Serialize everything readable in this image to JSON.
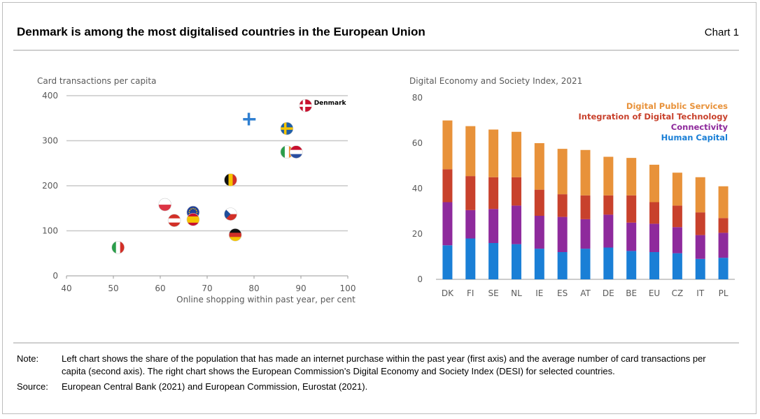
{
  "header": {
    "title": "Denmark is among the most digitalised countries in the European Union",
    "chart_number": "Chart 1"
  },
  "notes": {
    "note_label": "Note:",
    "note_text": "Left chart shows the share of the population that has made an internet purchase within the past year (first axis) and the average number of card transactions per capita (second axis). The right chart shows the European Commission’s Digital Economy and Society Index (DESI) for selected countries.",
    "source_label": "Source:",
    "source_text": "European Central Bank (2021) and European Commission, Eurostat (2021)."
  },
  "chart_data": [
    {
      "type": "scatter",
      "title": "Card transactions per capita",
      "xlabel": "Online shopping within past year, per cent",
      "ylabel": "Card transactions per capita",
      "xlim": [
        40,
        100
      ],
      "ylim": [
        0,
        400
      ],
      "xticks": [
        "40",
        "50",
        "60",
        "70",
        "80",
        "90",
        "100"
      ],
      "yticks": [
        "0",
        "100",
        "200",
        "300",
        "400"
      ],
      "points": [
        {
          "country": "Denmark",
          "x": 91,
          "y": 378,
          "label": "Denmark",
          "flag": "dk"
        },
        {
          "country": "Finland",
          "x": 79,
          "y": 348,
          "flag": "fi"
        },
        {
          "country": "Sweden",
          "x": 87,
          "y": 327,
          "flag": "se"
        },
        {
          "country": "Ireland",
          "x": 87,
          "y": 275,
          "flag": "ie"
        },
        {
          "country": "Netherlands",
          "x": 89,
          "y": 275,
          "flag": "nl"
        },
        {
          "country": "Belgium",
          "x": 75,
          "y": 213,
          "flag": "be"
        },
        {
          "country": "Poland",
          "x": 61,
          "y": 158,
          "flag": "pl"
        },
        {
          "country": "Euro area",
          "x": 67,
          "y": 141,
          "flag": "eu"
        },
        {
          "country": "Czech Republic",
          "x": 75,
          "y": 137,
          "flag": "cz"
        },
        {
          "country": "Austria",
          "x": 63,
          "y": 123,
          "flag": "at"
        },
        {
          "country": "Spain",
          "x": 67,
          "y": 125,
          "flag": "es"
        },
        {
          "country": "Germany",
          "x": 76,
          "y": 91,
          "flag": "de"
        },
        {
          "country": "Italy",
          "x": 51,
          "y": 63,
          "flag": "it"
        }
      ]
    },
    {
      "type": "bar",
      "stacked": true,
      "title": "Digital Economy and Society Index, 2021",
      "categories": [
        "DK",
        "FI",
        "SE",
        "NL",
        "IE",
        "ES",
        "AT",
        "DE",
        "BE",
        "EU",
        "CZ",
        "IT",
        "PL"
      ],
      "ylim": [
        0,
        80
      ],
      "yticks": [
        "0",
        "20",
        "40",
        "60",
        "80"
      ],
      "legend_position": "top-right",
      "series": [
        {
          "name": "Human Capital",
          "color": "#1a7fd6",
          "values": [
            15,
            18,
            16,
            15.5,
            13.5,
            12,
            13.5,
            14,
            12.5,
            12,
            11.5,
            9,
            9.5
          ]
        },
        {
          "name": "Connectivity",
          "color": "#8e2a9c",
          "values": [
            19,
            12.5,
            15,
            17,
            14.5,
            15.5,
            13,
            14.5,
            12.5,
            12.5,
            11.5,
            10.5,
            11
          ]
        },
        {
          "name": "Integration of Digital Technology",
          "color": "#c8412c",
          "values": [
            14.5,
            15,
            14,
            12.5,
            11.5,
            10,
            10.5,
            8.5,
            12,
            9.5,
            9.5,
            10,
            6.5
          ]
        },
        {
          "name": "Digital Public Services",
          "color": "#e8923a",
          "values": [
            21.5,
            22,
            21,
            20,
            20.5,
            20,
            20,
            17,
            16.5,
            16.5,
            14.5,
            15.5,
            14
          ]
        }
      ]
    }
  ]
}
